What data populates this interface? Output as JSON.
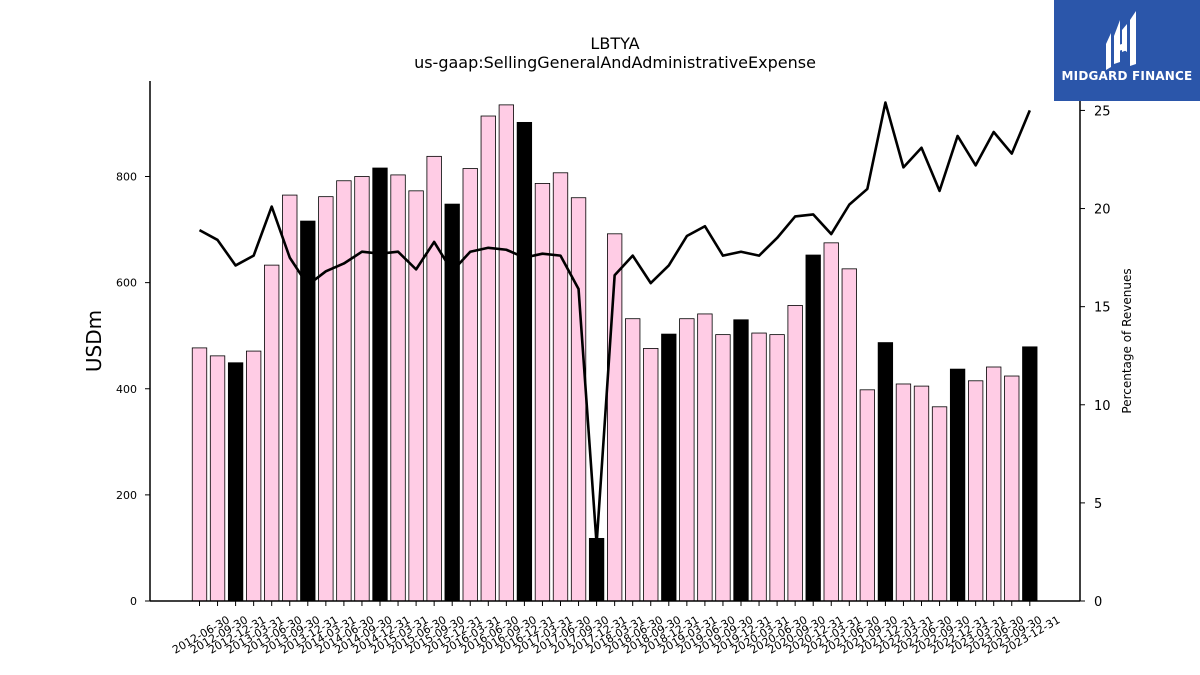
{
  "logo": {
    "text": "MIDGARD FINANCE",
    "icon": "midgard-finance-logo"
  },
  "chart_data": {
    "type": "bar",
    "title": "LBTYA",
    "subtitle": "us-gaap:SellingGeneralAndAdministrativeExpense",
    "ylabel": "USDm",
    "y2label": "Percentage of Revenues",
    "ylim": [
      0,
      980
    ],
    "y2lim": [
      0,
      26.5
    ],
    "yticks": [
      0,
      200,
      400,
      600,
      800
    ],
    "y2ticks": [
      0,
      5,
      10,
      15,
      20,
      25
    ],
    "grid": false,
    "colors": {
      "quarter_bar": "#ffcce5",
      "annual_bar": "#000000",
      "bar_edge": "#000000",
      "line": "#000000"
    },
    "categories": [
      "2012-06-30",
      "2012-09-30",
      "2012-12-31",
      "2013-03-31",
      "2013-06-30",
      "2013-09-30",
      "2013-12-31",
      "2014-03-31",
      "2014-06-30",
      "2014-09-30",
      "2014-12-31",
      "2015-03-31",
      "2015-06-30",
      "2015-09-30",
      "2015-12-31",
      "2016-03-31",
      "2016-06-30",
      "2016-09-30",
      "2016-12-31",
      "2017-03-31",
      "2017-06-30",
      "2017-09-30",
      "2017-12-31",
      "2018-03-31",
      "2018-06-30",
      "2018-09-30",
      "2018-12-31",
      "2019-03-31",
      "2019-06-30",
      "2019-09-30",
      "2019-12-31",
      "2020-03-31",
      "2020-06-30",
      "2020-09-30",
      "2020-12-31",
      "2021-03-31",
      "2021-06-30",
      "2021-09-30",
      "2021-12-31",
      "2022-03-31",
      "2022-06-30",
      "2022-09-30",
      "2022-12-31",
      "2023-03-31",
      "2023-06-30",
      "2023-09-30",
      "2023-12-31"
    ],
    "series": [
      {
        "kind": "bar",
        "values": [
          477,
          462,
          449,
          471,
          633,
          765,
          716,
          762,
          792,
          800,
          816,
          803,
          773,
          838,
          748,
          815,
          914,
          935,
          902,
          787,
          807,
          760,
          118,
          692,
          532,
          476,
          503,
          532,
          541,
          502,
          530,
          505,
          502,
          557,
          652,
          675,
          626,
          398,
          487,
          409,
          405,
          366,
          437,
          415,
          441,
          424,
          479
        ],
        "annual_flags": [
          false,
          false,
          true,
          false,
          false,
          false,
          true,
          false,
          false,
          false,
          true,
          false,
          false,
          false,
          true,
          false,
          false,
          false,
          true,
          false,
          false,
          false,
          true,
          false,
          false,
          false,
          true,
          false,
          false,
          false,
          true,
          false,
          false,
          false,
          true,
          false,
          false,
          false,
          true,
          false,
          false,
          false,
          true,
          false,
          false,
          false,
          true
        ]
      },
      {
        "kind": "line",
        "axis": "right",
        "values": [
          18.9,
          18.4,
          17.1,
          17.6,
          20.1,
          17.5,
          16.1,
          16.8,
          17.2,
          17.8,
          17.7,
          17.8,
          16.9,
          18.3,
          16.8,
          17.8,
          18.0,
          17.9,
          17.5,
          17.7,
          17.6,
          15.9,
          2.9,
          16.6,
          17.6,
          16.2,
          17.1,
          18.6,
          19.1,
          17.6,
          17.8,
          17.6,
          18.5,
          19.6,
          19.7,
          18.7,
          20.2,
          21.0,
          25.4,
          22.1,
          23.1,
          20.9,
          23.7,
          22.2,
          23.9,
          22.8,
          25.0
        ]
      }
    ]
  }
}
